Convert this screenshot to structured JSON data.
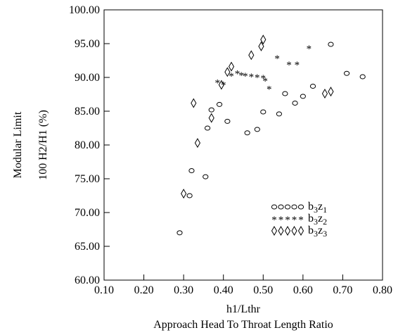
{
  "chart_data": {
    "type": "scatter",
    "title": "",
    "xlabel": "h1/Lthr",
    "xlabel2": "Approach Head To Throat Length Ratio",
    "ylabel": "100 H2/H1 (%)",
    "ylabel2": "Modular Limit",
    "xlim": [
      0.1,
      0.8
    ],
    "ylim": [
      60.0,
      100.0
    ],
    "x_ticks": [
      "0.10",
      "0.20",
      "0.30",
      "0.40",
      "0.50",
      "0.60",
      "0.70",
      "0.80"
    ],
    "y_ticks": [
      "60.00",
      "65.00",
      "70.00",
      "75.00",
      "80.00",
      "85.00",
      "90.00",
      "95.00",
      "100.00"
    ],
    "grid": false,
    "legend_position": "bottom-right",
    "series": [
      {
        "name": "b3z1",
        "marker": "circle",
        "points": [
          [
            0.29,
            67.0
          ],
          [
            0.315,
            72.5
          ],
          [
            0.32,
            76.2
          ],
          [
            0.355,
            75.3
          ],
          [
            0.36,
            82.5
          ],
          [
            0.37,
            85.2
          ],
          [
            0.39,
            86.0
          ],
          [
            0.41,
            83.5
          ],
          [
            0.46,
            81.8
          ],
          [
            0.485,
            82.3
          ],
          [
            0.5,
            84.9
          ],
          [
            0.54,
            84.6
          ],
          [
            0.555,
            87.6
          ],
          [
            0.58,
            86.2
          ],
          [
            0.6,
            87.2
          ],
          [
            0.625,
            88.7
          ],
          [
            0.67,
            94.9
          ],
          [
            0.71,
            90.6
          ],
          [
            0.75,
            90.1
          ]
        ]
      },
      {
        "name": "b3z2",
        "marker": "asterisk",
        "points": [
          [
            0.385,
            89.3
          ],
          [
            0.4,
            89.0
          ],
          [
            0.42,
            90.3
          ],
          [
            0.435,
            90.7
          ],
          [
            0.445,
            90.4
          ],
          [
            0.455,
            90.3
          ],
          [
            0.47,
            90.2
          ],
          [
            0.485,
            90.1
          ],
          [
            0.5,
            90.0
          ],
          [
            0.505,
            89.6
          ],
          [
            0.515,
            88.4
          ],
          [
            0.535,
            92.9
          ],
          [
            0.565,
            92.0
          ],
          [
            0.585,
            92.0
          ],
          [
            0.615,
            94.4
          ]
        ]
      },
      {
        "name": "b3z3",
        "marker": "diamond",
        "points": [
          [
            0.3,
            72.8
          ],
          [
            0.325,
            86.2
          ],
          [
            0.335,
            80.3
          ],
          [
            0.37,
            84.0
          ],
          [
            0.395,
            88.9
          ],
          [
            0.41,
            90.8
          ],
          [
            0.42,
            91.6
          ],
          [
            0.47,
            93.3
          ],
          [
            0.495,
            94.6
          ],
          [
            0.5,
            95.6
          ],
          [
            0.655,
            87.6
          ],
          [
            0.67,
            87.9
          ]
        ]
      }
    ]
  },
  "legend": {
    "items": [
      {
        "base": "b",
        "sub1": "3",
        "mid": "z",
        "sub2": "1"
      },
      {
        "base": "b",
        "sub1": "3",
        "mid": "z",
        "sub2": "2"
      },
      {
        "base": "b",
        "sub1": "3",
        "mid": "z",
        "sub2": "3"
      }
    ]
  }
}
